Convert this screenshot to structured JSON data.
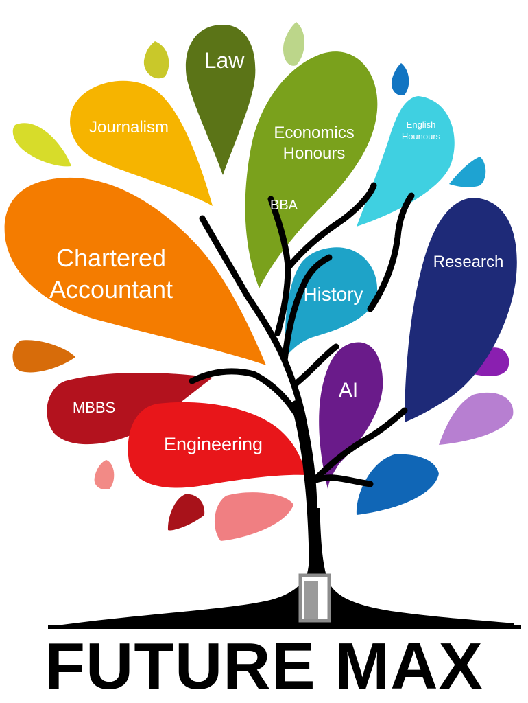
{
  "brand": {
    "name": "FUTURE MAX"
  },
  "leaves": {
    "law": {
      "label": "Law",
      "color": "#5b7417"
    },
    "journalism": {
      "label": "Journalism",
      "color": "#f6b400"
    },
    "economics_line1": {
      "label": "Economics",
      "color": "#7aa11c"
    },
    "economics_line2": {
      "label": "Honours"
    },
    "english_line1": {
      "label": "English",
      "color": "#3fd0e1"
    },
    "english_line2": {
      "label": "Hounours"
    },
    "bba": {
      "label": "BBA"
    },
    "chartered_line1": {
      "label": "Chartered",
      "color": "#f47c00"
    },
    "chartered_line2": {
      "label": "Accountant"
    },
    "history": {
      "label": "History",
      "color": "#1ea3c8"
    },
    "research": {
      "label": "Research",
      "color": "#1e2a78"
    },
    "ai": {
      "label": "AI",
      "color": "#6a1b8a"
    },
    "mbbs": {
      "label": "MBBS",
      "color": "#b3121e"
    },
    "engineering": {
      "label": "Engineering",
      "color": "#e8161a"
    }
  },
  "trunk_color": "#000000"
}
